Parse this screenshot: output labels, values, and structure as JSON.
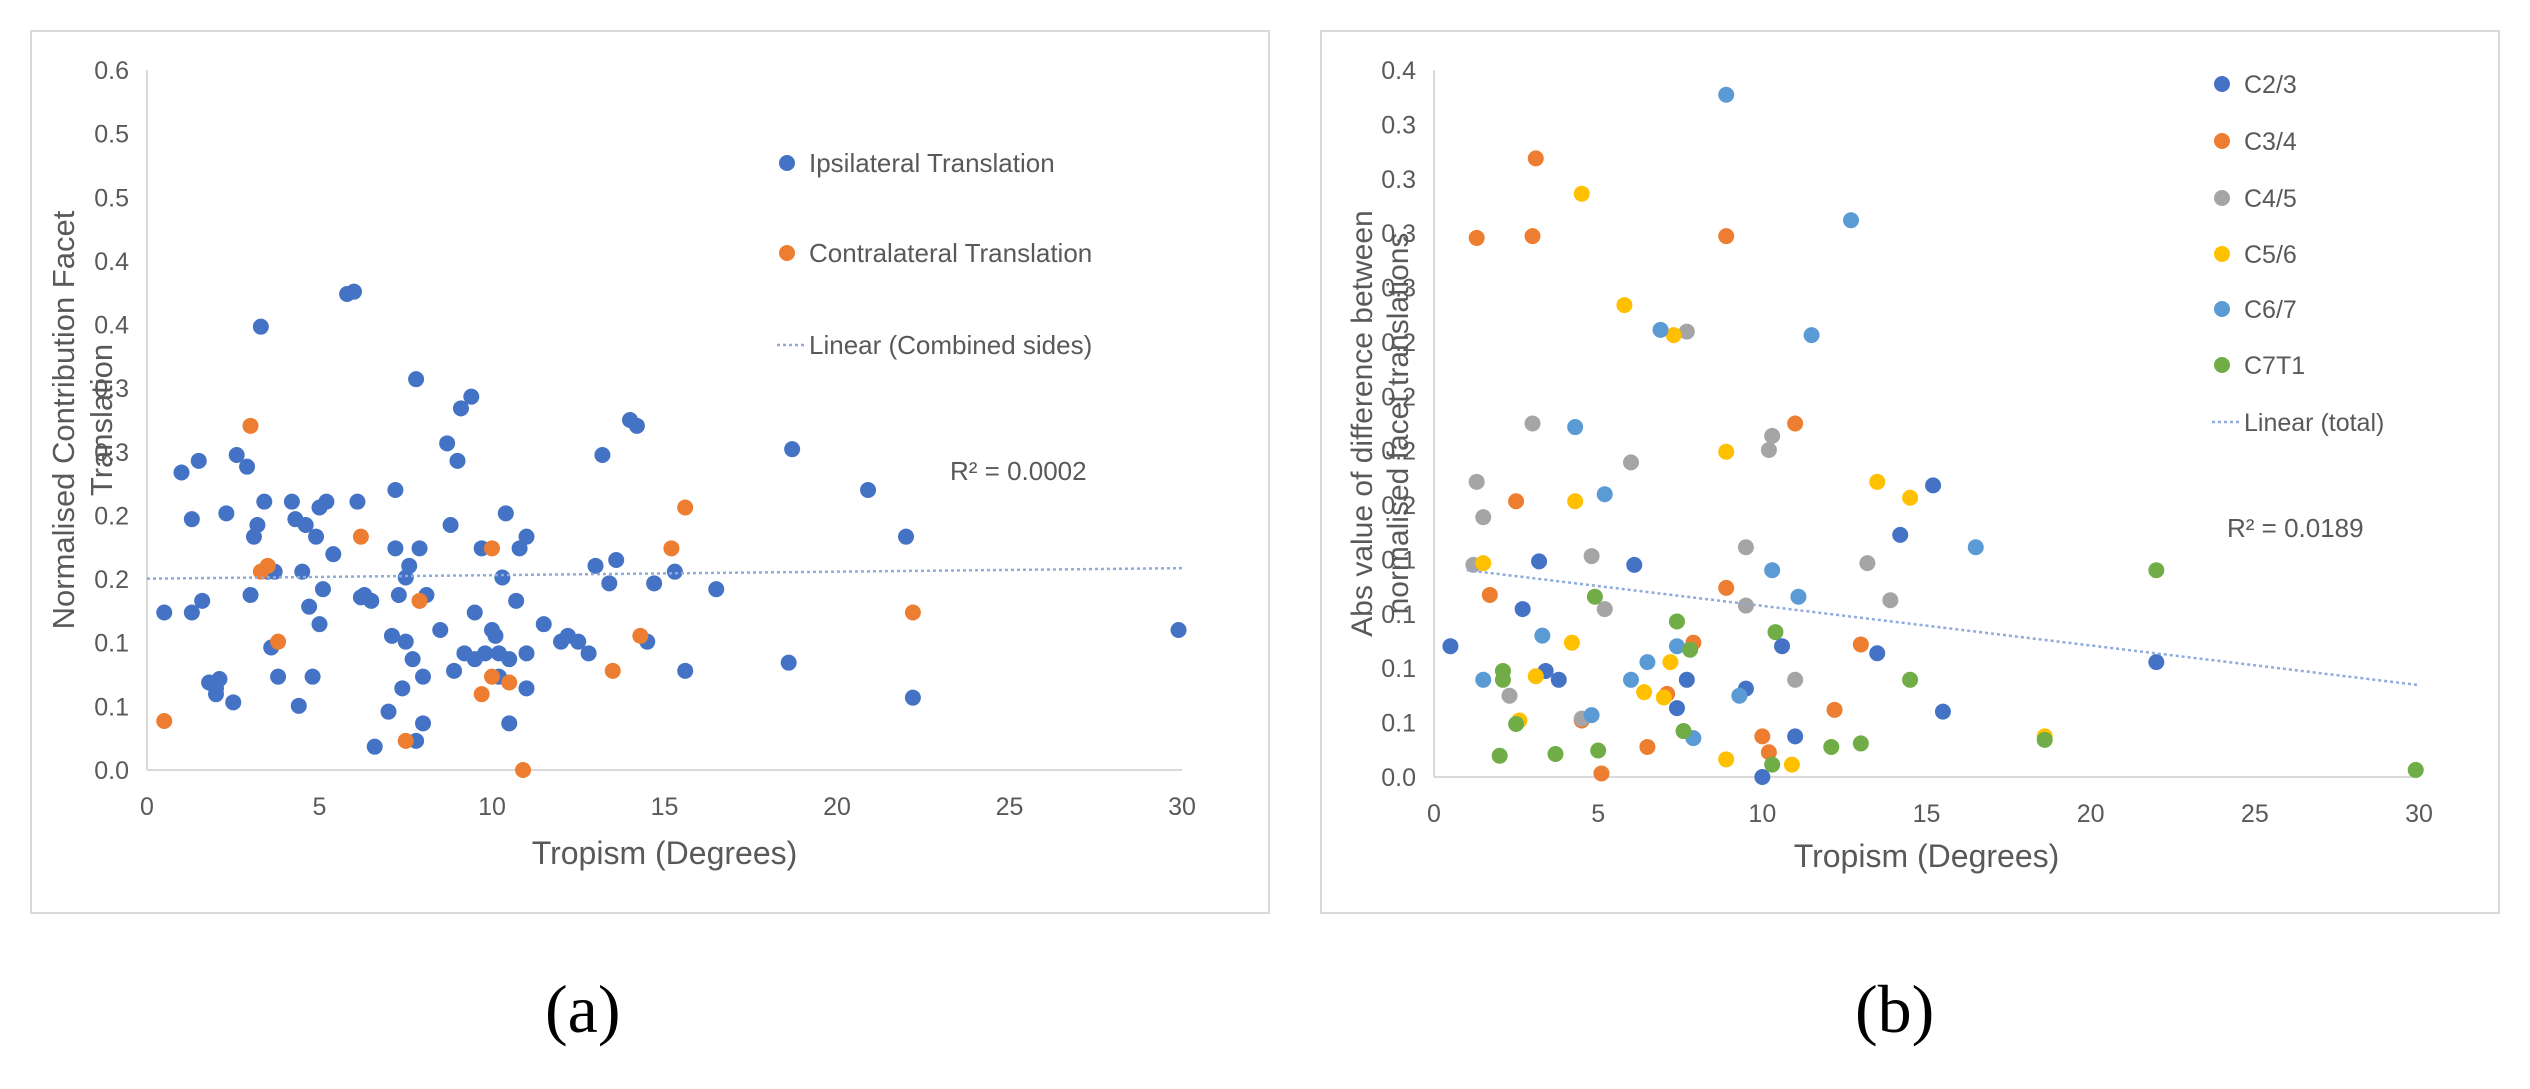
{
  "panel_labels": [
    "(a)",
    "(b)"
  ],
  "colors": {
    "ipsilateral": "#4472C4",
    "contralateral": "#ED7D31",
    "C2/3": "#4472C4",
    "C3/4": "#ED7D31",
    "C4/5": "#A5A5A5",
    "C5/6": "#FFC000",
    "C6/7": "#5B9BD5",
    "C7T1": "#70AD47",
    "trend": "#8FAADC",
    "axis_text": "#595959",
    "grid": "#d9d9d9"
  },
  "chart_data": [
    {
      "type": "scatter",
      "panel": "a",
      "xlabel": "Tropism (Degrees)",
      "ylabel": "Normalised Contribution Facet Translation",
      "xlim": [
        0,
        30
      ],
      "ylim": [
        0,
        0.6
      ],
      "xticks": [
        "0",
        "5",
        "10",
        "15",
        "20",
        "25",
        "30"
      ],
      "yticks": [
        "0.0",
        "0.1",
        "0.1",
        "0.2",
        "0.2",
        "0.3",
        "0.3",
        "0.4",
        "0.4",
        "0.5",
        "0.5",
        "0.6"
      ],
      "annotation": "R² = 0.0002",
      "legend": [
        "Ipsilateral Translation",
        "Contralateral Translation",
        "Linear (Combined sides)"
      ],
      "trendline": {
        "name": "Linear (Combined sides)",
        "x": [
          0,
          30
        ],
        "y": [
          0.164,
          0.173
        ]
      },
      "series": [
        {
          "name": "Ipsilateral Translation",
          "color_key": "ipsilateral",
          "points": [
            [
              0.5,
              0.135
            ],
            [
              1,
              0.255
            ],
            [
              1.3,
              0.215
            ],
            [
              1.3,
              0.135
            ],
            [
              1.5,
              0.265
            ],
            [
              1.6,
              0.145
            ],
            [
              1.8,
              0.075
            ],
            [
              2,
              0.065
            ],
            [
              2,
              0.07
            ],
            [
              2.1,
              0.078
            ],
            [
              2.3,
              0.22
            ],
            [
              2.5,
              0.058
            ],
            [
              2.6,
              0.27
            ],
            [
              2.9,
              0.26
            ],
            [
              3,
              0.15
            ],
            [
              3.1,
              0.2
            ],
            [
              3.2,
              0.21
            ],
            [
              3.3,
              0.38
            ],
            [
              3.4,
              0.23
            ],
            [
              3.5,
              0.17
            ],
            [
              3.6,
              0.105
            ],
            [
              3.7,
              0.17
            ],
            [
              3.8,
              0.08
            ],
            [
              4.2,
              0.23
            ],
            [
              4.3,
              0.215
            ],
            [
              4.4,
              0.055
            ],
            [
              4.5,
              0.17
            ],
            [
              4.6,
              0.21
            ],
            [
              4.7,
              0.14
            ],
            [
              4.8,
              0.08
            ],
            [
              4.9,
              0.2
            ],
            [
              5,
              0.125
            ],
            [
              5,
              0.225
            ],
            [
              5.1,
              0.155
            ],
            [
              5.2,
              0.23
            ],
            [
              5.4,
              0.185
            ],
            [
              5.8,
              0.408
            ],
            [
              6,
              0.41
            ],
            [
              6.1,
              0.23
            ],
            [
              6.2,
              0.148
            ],
            [
              6.3,
              0.15
            ],
            [
              6.5,
              0.145
            ],
            [
              6.6,
              0.02
            ],
            [
              7,
              0.05
            ],
            [
              7.1,
              0.115
            ],
            [
              7.2,
              0.24
            ],
            [
              7.2,
              0.19
            ],
            [
              7.3,
              0.15
            ],
            [
              7.4,
              0.07
            ],
            [
              7.5,
              0.11
            ],
            [
              7.5,
              0.165
            ],
            [
              7.6,
              0.175
            ],
            [
              7.7,
              0.095
            ],
            [
              7.8,
              0.335
            ],
            [
              7.8,
              0.025
            ],
            [
              7.9,
              0.19
            ],
            [
              8,
              0.08
            ],
            [
              8,
              0.04
            ],
            [
              8.1,
              0.15
            ],
            [
              8.5,
              0.12
            ],
            [
              8.7,
              0.28
            ],
            [
              8.8,
              0.21
            ],
            [
              8.9,
              0.085
            ],
            [
              9,
              0.265
            ],
            [
              9.1,
              0.31
            ],
            [
              9.2,
              0.1
            ],
            [
              9.4,
              0.32
            ],
            [
              9.5,
              0.135
            ],
            [
              9.5,
              0.095
            ],
            [
              9.7,
              0.19
            ],
            [
              9.8,
              0.1
            ],
            [
              10,
              0.12
            ],
            [
              10.1,
              0.115
            ],
            [
              10.2,
              0.1
            ],
            [
              10.2,
              0.08
            ],
            [
              10.3,
              0.165
            ],
            [
              10.4,
              0.22
            ],
            [
              10.5,
              0.04
            ],
            [
              10.5,
              0.095
            ],
            [
              10.7,
              0.145
            ],
            [
              10.8,
              0.19
            ],
            [
              11,
              0.07
            ],
            [
              11,
              0.1
            ],
            [
              11,
              0.2
            ],
            [
              11.5,
              0.125
            ],
            [
              12,
              0.11
            ],
            [
              12.2,
              0.115
            ],
            [
              12.5,
              0.11
            ],
            [
              12.8,
              0.1
            ],
            [
              13,
              0.175
            ],
            [
              13.2,
              0.27
            ],
            [
              13.4,
              0.16
            ],
            [
              13.6,
              0.18
            ],
            [
              14,
              0.3
            ],
            [
              14.2,
              0.295
            ],
            [
              14.5,
              0.11
            ],
            [
              14.7,
              0.16
            ],
            [
              15.3,
              0.17
            ],
            [
              15.6,
              0.085
            ],
            [
              16.5,
              0.155
            ],
            [
              18.6,
              0.092
            ],
            [
              18.7,
              0.275
            ],
            [
              20.9,
              0.24
            ],
            [
              22,
              0.2
            ],
            [
              22.2,
              0.062
            ],
            [
              29.9,
              0.12
            ]
          ]
        },
        {
          "name": "Contralateral Translation",
          "color_key": "contralateral",
          "points": [
            [
              0.5,
              0.042
            ],
            [
              3,
              0.295
            ],
            [
              3.3,
              0.17
            ],
            [
              3.5,
              0.175
            ],
            [
              3.8,
              0.11
            ],
            [
              6.2,
              0.2
            ],
            [
              7.5,
              0.025
            ],
            [
              7.9,
              0.145
            ],
            [
              9.7,
              0.065
            ],
            [
              10,
              0.19
            ],
            [
              10,
              0.08
            ],
            [
              10.5,
              0.075
            ],
            [
              10.9,
              0.0
            ],
            [
              13.5,
              0.085
            ],
            [
              14.3,
              0.115
            ],
            [
              15.2,
              0.19
            ],
            [
              15.6,
              0.225
            ],
            [
              22.2,
              0.135
            ]
          ]
        }
      ]
    },
    {
      "type": "scatter",
      "panel": "b",
      "xlabel": "Tropism (Degrees)",
      "ylabel": "Abs value of difference between normalised facet translations",
      "ylabel_lines": [
        "Abs value of difference between",
        "normalised facet translations"
      ],
      "xlim": [
        0,
        30
      ],
      "ylim": [
        0,
        0.4
      ],
      "xticks": [
        "0",
        "5",
        "10",
        "15",
        "20",
        "25",
        "30"
      ],
      "yticks": [
        "0.0",
        "0.1",
        "0.1",
        "0.1",
        "0.1",
        "0.2",
        "0.2",
        "0.2",
        "0.2",
        "0.3",
        "0.3",
        "0.3",
        "0.3",
        "0.4"
      ],
      "annotation": "R² = 0.0189",
      "legend": [
        "C2/3",
        "C3/4",
        "C4/5",
        "C5/6",
        "C6/7",
        "C7T1",
        "Linear (total)"
      ],
      "trendline": {
        "name": "Linear (total)",
        "x": [
          1,
          30
        ],
        "y": [
          0.117,
          0.052
        ]
      },
      "series": [
        {
          "name": "C2/3",
          "color_key": "C2/3",
          "points": [
            [
              0.5,
              0.074
            ],
            [
              2.7,
              0.095
            ],
            [
              3.2,
              0.122
            ],
            [
              3.4,
              0.06
            ],
            [
              3.8,
              0.055
            ],
            [
              6.1,
              0.12
            ],
            [
              7.4,
              0.039
            ],
            [
              7.7,
              0.055
            ],
            [
              9.5,
              0.05
            ],
            [
              10,
              0.0
            ],
            [
              10.6,
              0.074
            ],
            [
              11,
              0.023
            ],
            [
              13.5,
              0.07
            ],
            [
              14.2,
              0.137
            ],
            [
              15.2,
              0.165
            ],
            [
              15.5,
              0.037
            ],
            [
              22,
              0.065
            ]
          ]
        },
        {
          "name": "C3/4",
          "color_key": "C3/4",
          "points": [
            [
              1.3,
              0.305
            ],
            [
              1.7,
              0.103
            ],
            [
              2.5,
              0.156
            ],
            [
              3,
              0.306
            ],
            [
              3.1,
              0.35
            ],
            [
              4.5,
              0.032
            ],
            [
              5.1,
              0.002
            ],
            [
              6.5,
              0.017
            ],
            [
              7.1,
              0.047
            ],
            [
              7.9,
              0.076
            ],
            [
              8.9,
              0.107
            ],
            [
              8.9,
              0.306
            ],
            [
              10,
              0.023
            ],
            [
              10.2,
              0.014
            ],
            [
              11,
              0.2
            ],
            [
              12.2,
              0.038
            ],
            [
              13,
              0.075
            ]
          ]
        },
        {
          "name": "C4/5",
          "color_key": "C4/5",
          "points": [
            [
              1.2,
              0.12
            ],
            [
              1.3,
              0.167
            ],
            [
              1.5,
              0.147
            ],
            [
              2.3,
              0.046
            ],
            [
              3,
              0.2
            ],
            [
              4.5,
              0.033
            ],
            [
              4.8,
              0.125
            ],
            [
              5.2,
              0.095
            ],
            [
              6,
              0.178
            ],
            [
              7.7,
              0.252
            ],
            [
              9.5,
              0.13
            ],
            [
              9.5,
              0.097
            ],
            [
              10.2,
              0.185
            ],
            [
              10.3,
              0.193
            ],
            [
              11,
              0.055
            ],
            [
              13.2,
              0.121
            ],
            [
              13.9,
              0.1
            ]
          ]
        },
        {
          "name": "C5/6",
          "color_key": "C5/6",
          "points": [
            [
              1.5,
              0.121
            ],
            [
              2.6,
              0.032
            ],
            [
              3.1,
              0.057
            ],
            [
              4.2,
              0.076
            ],
            [
              4.3,
              0.156
            ],
            [
              4.5,
              0.33
            ],
            [
              5.8,
              0.267
            ],
            [
              6.4,
              0.048
            ],
            [
              7,
              0.045
            ],
            [
              7.2,
              0.065
            ],
            [
              7.3,
              0.25
            ],
            [
              8.9,
              0.01
            ],
            [
              8.9,
              0.184
            ],
            [
              10.9,
              0.007
            ],
            [
              13.5,
              0.167
            ],
            [
              14.5,
              0.158
            ],
            [
              18.6,
              0.023
            ]
          ]
        },
        {
          "name": "C6/7",
          "color_key": "C6/7",
          "points": [
            [
              1.5,
              0.055
            ],
            [
              3.3,
              0.08
            ],
            [
              4.3,
              0.198
            ],
            [
              4.8,
              0.035
            ],
            [
              5.2,
              0.16
            ],
            [
              6,
              0.055
            ],
            [
              6.5,
              0.065
            ],
            [
              6.9,
              0.253
            ],
            [
              7.4,
              0.074
            ],
            [
              7.9,
              0.022
            ],
            [
              8.9,
              0.386
            ],
            [
              9.3,
              0.046
            ],
            [
              10.3,
              0.117
            ],
            [
              11.1,
              0.102
            ],
            [
              11.5,
              0.25
            ],
            [
              12.7,
              0.315
            ],
            [
              16.5,
              0.13
            ]
          ]
        },
        {
          "name": "C7T1",
          "color_key": "C7T1",
          "points": [
            [
              2,
              0.012
            ],
            [
              2.1,
              0.06
            ],
            [
              2.1,
              0.055
            ],
            [
              2.5,
              0.03
            ],
            [
              3.7,
              0.013
            ],
            [
              4.9,
              0.102
            ],
            [
              5,
              0.015
            ],
            [
              7.4,
              0.088
            ],
            [
              7.6,
              0.026
            ],
            [
              7.8,
              0.072
            ],
            [
              10.3,
              0.007
            ],
            [
              10.4,
              0.082
            ],
            [
              12.1,
              0.017
            ],
            [
              13,
              0.019
            ],
            [
              14.5,
              0.055
            ],
            [
              18.6,
              0.021
            ],
            [
              22,
              0.117
            ],
            [
              29.9,
              0.004
            ]
          ]
        }
      ]
    }
  ]
}
